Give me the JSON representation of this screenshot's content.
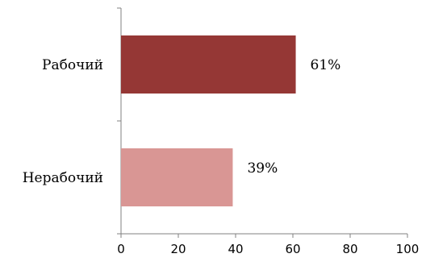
{
  "chart_data": {
    "type": "bar",
    "orientation": "horizontal",
    "categories": [
      "Рабочий",
      "Нерабочий"
    ],
    "values": [
      61,
      39
    ],
    "data_labels": [
      "61%",
      "39%"
    ],
    "colors": [
      "#953735",
      "#d99694"
    ],
    "xlim": [
      0,
      100
    ],
    "x_ticks": [
      0,
      20,
      40,
      60,
      80,
      100
    ],
    "grid": false,
    "legend": "none"
  }
}
